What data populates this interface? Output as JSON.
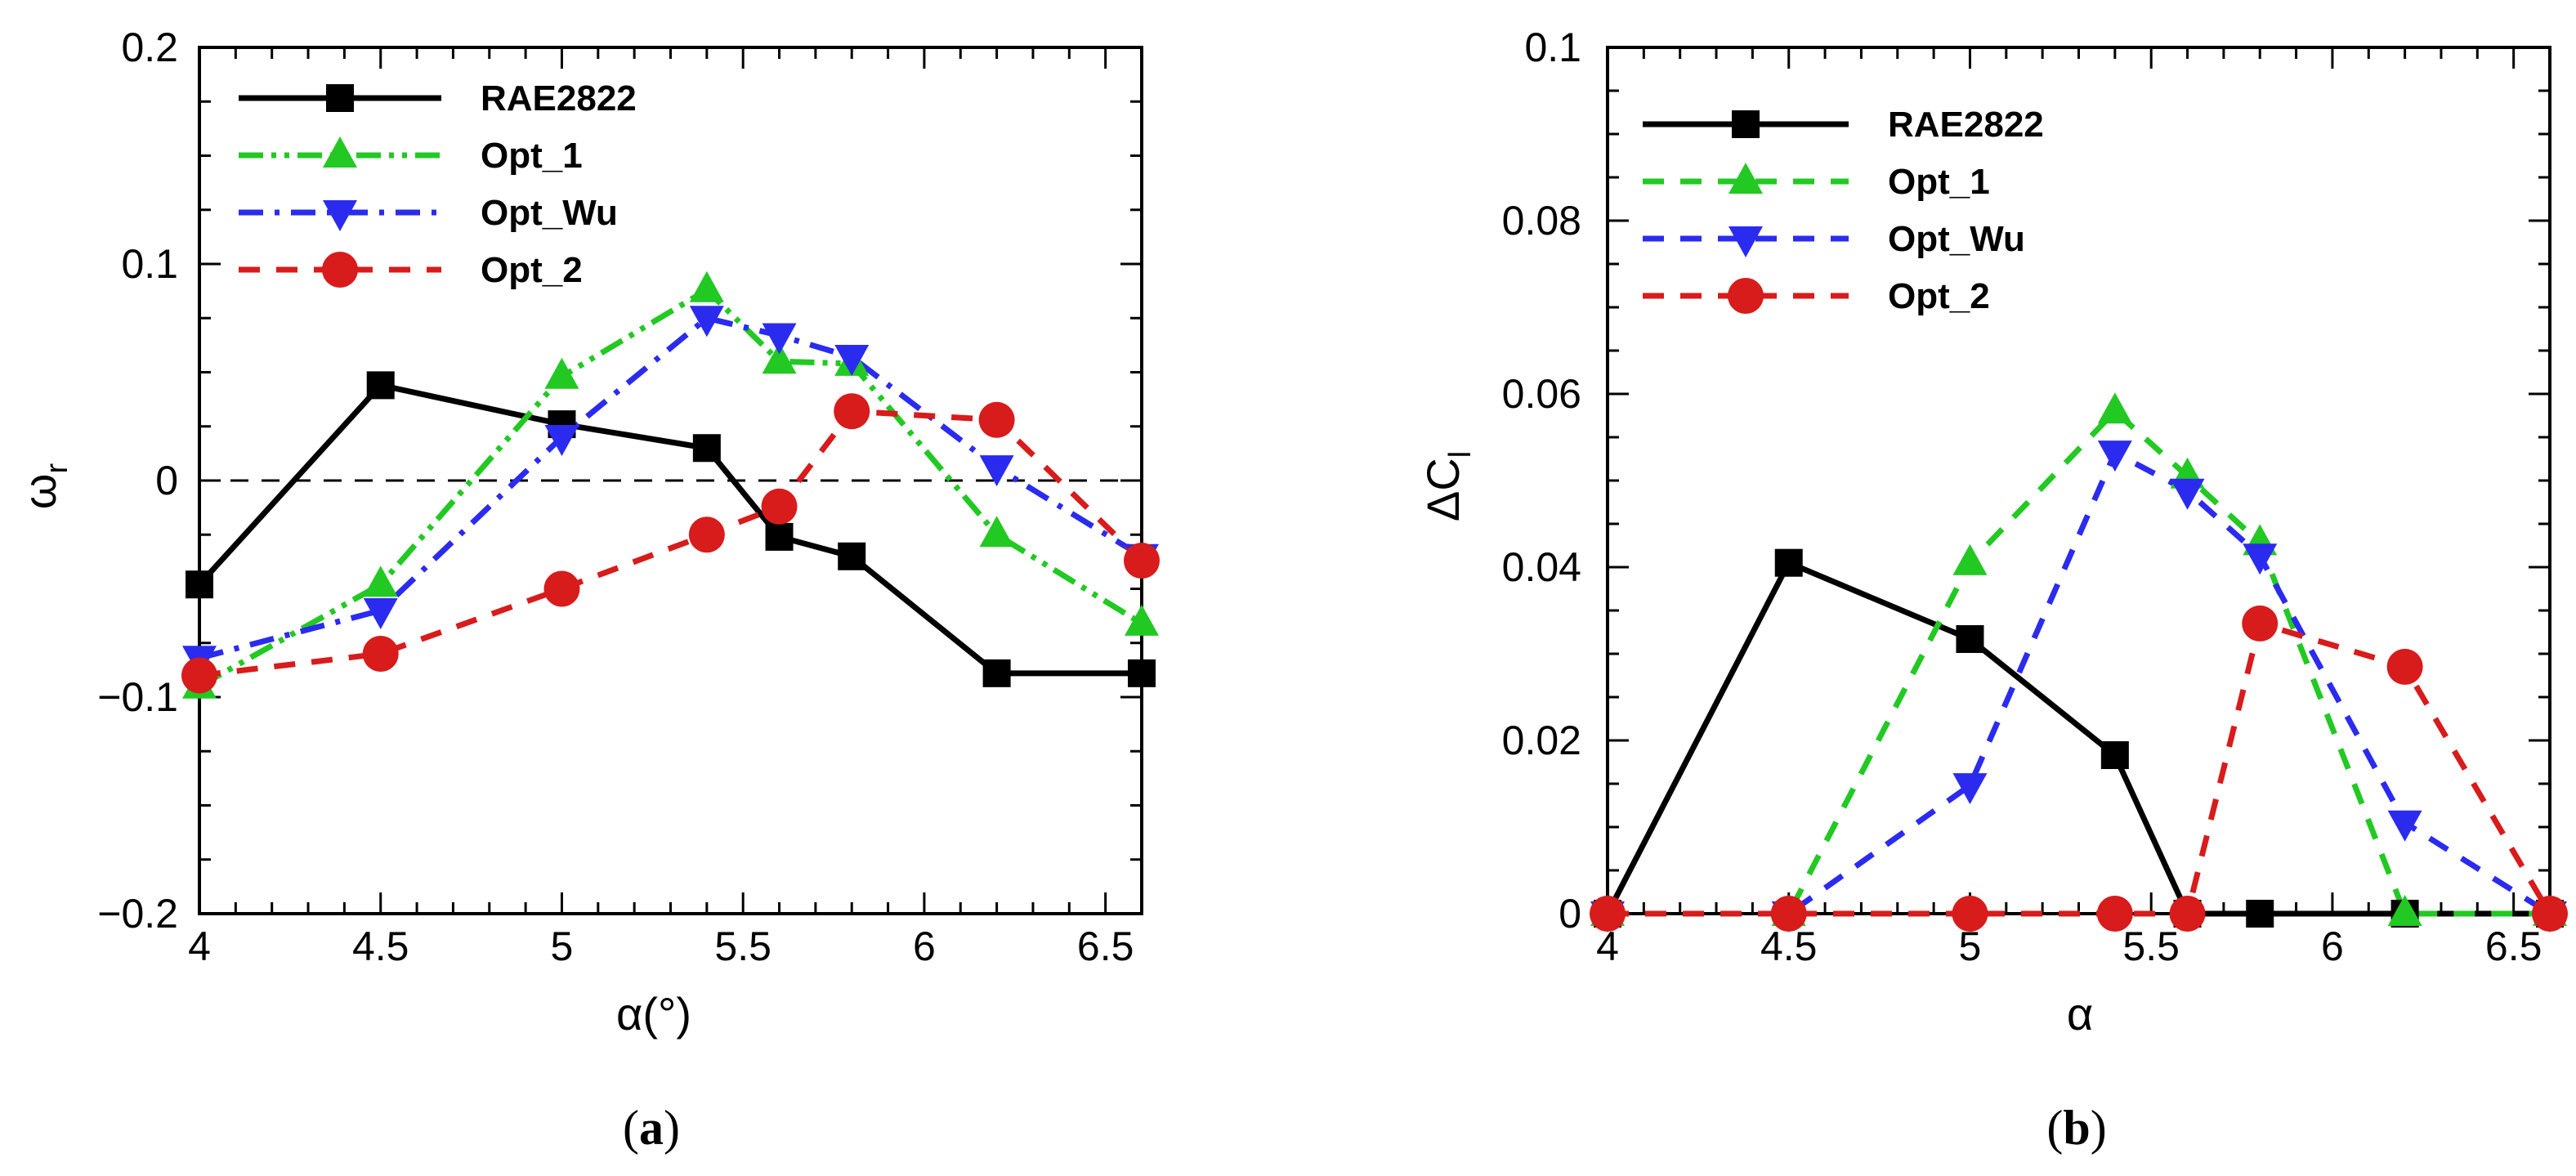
{
  "chart_data": [
    {
      "type": "line",
      "panel_label": "a",
      "xlabel": "α(°)",
      "ylabel": "ω",
      "ylabel_sub": "r",
      "xlim": [
        4,
        6.6
      ],
      "ylim": [
        -0.2,
        0.2
      ],
      "xticks": [
        4,
        4.5,
        5,
        5.5,
        6,
        6.5
      ],
      "xtick_labels": [
        "4",
        "4.5",
        "5",
        "5.5",
        "6",
        "6.5"
      ],
      "yticks": [
        -0.2,
        -0.1,
        0,
        0.1,
        0.2
      ],
      "ytick_labels": [
        "−0.2",
        "−0.1",
        "0",
        "0.1",
        "0.2"
      ],
      "reference_line": {
        "y": 0,
        "style": "dashed"
      },
      "legend_position": "top-left",
      "series": [
        {
          "name": "RAE2822",
          "color": "#000000",
          "marker": "square",
          "dash": "solid",
          "x": [
            4,
            4.5,
            5,
            5.4,
            5.6,
            5.8,
            6.2,
            6.6
          ],
          "y": [
            -0.048,
            0.044,
            0.026,
            0.015,
            -0.026,
            -0.035,
            -0.089,
            -0.089
          ]
        },
        {
          "name": "Opt_1",
          "color": "#22c922",
          "marker": "triangle-up",
          "dash": "dashdotdot",
          "x": [
            4,
            4.5,
            5,
            5.4,
            5.6,
            5.8,
            6.2,
            6.6
          ],
          "y": [
            -0.095,
            -0.048,
            0.048,
            0.088,
            0.055,
            0.054,
            -0.025,
            -0.066
          ]
        },
        {
          "name": "Opt_Wu",
          "color": "#2b2bf0",
          "marker": "triangle-down",
          "dash": "dashdot",
          "x": [
            4,
            4.5,
            5,
            5.4,
            5.6,
            5.8,
            6.2,
            6.6
          ],
          "y": [
            -0.082,
            -0.06,
            0.02,
            0.075,
            0.067,
            0.057,
            0.006,
            -0.035
          ]
        },
        {
          "name": "Opt_2",
          "color": "#d81b1b",
          "marker": "circle",
          "dash": "dashed",
          "x": [
            4,
            4.5,
            5,
            5.4,
            5.6,
            5.8,
            6.2,
            6.6
          ],
          "y": [
            -0.09,
            -0.08,
            -0.05,
            -0.025,
            -0.012,
            0.032,
            0.028,
            -0.037
          ]
        }
      ]
    },
    {
      "type": "line",
      "panel_label": "b",
      "xlabel": "α",
      "ylabel": "ΔC",
      "ylabel_sub": "l",
      "xlim": [
        4,
        6.6
      ],
      "ylim": [
        0,
        0.1
      ],
      "xticks": [
        4,
        4.5,
        5,
        5.5,
        6,
        6.5
      ],
      "xtick_labels": [
        "4",
        "4.5",
        "5",
        "5.5",
        "6",
        "6.5"
      ],
      "yticks": [
        0,
        0.02,
        0.04,
        0.06,
        0.08,
        0.1
      ],
      "ytick_labels": [
        "0",
        "0.02",
        "0.04",
        "0.06",
        "0.08",
        "0.1"
      ],
      "legend_position": "top-left",
      "series": [
        {
          "name": "RAE2822",
          "color": "#000000",
          "marker": "square",
          "dash": "solid",
          "x": [
            4,
            4.5,
            5,
            5.4,
            5.6,
            5.8,
            6.2,
            6.6
          ],
          "y": [
            0,
            0.0405,
            0.0317,
            0.0183,
            0,
            0,
            0,
            0
          ]
        },
        {
          "name": "Opt_1",
          "color": "#22c922",
          "marker": "triangle-up",
          "dash": "dashed",
          "x": [
            4,
            4.5,
            5,
            5.4,
            5.6,
            5.8,
            6.2,
            6.6
          ],
          "y": [
            0,
            0,
            0.0405,
            0.058,
            0.0505,
            0.0428,
            0,
            0
          ]
        },
        {
          "name": "Opt_Wu",
          "color": "#2b2bf0",
          "marker": "triangle-down",
          "dash": "dashed",
          "x": [
            4,
            4.5,
            5,
            5.4,
            5.6,
            5.8,
            6.2,
            6.6
          ],
          "y": [
            0,
            0,
            0.0148,
            0.0532,
            0.0488,
            0.0413,
            0.0105,
            0
          ]
        },
        {
          "name": "Opt_2",
          "color": "#d81b1b",
          "marker": "circle",
          "dash": "dashed",
          "x": [
            4,
            4.5,
            5,
            5.4,
            5.6,
            5.8,
            6.2,
            6.6
          ],
          "y": [
            0,
            0,
            0,
            0,
            0,
            0.0335,
            0.0285,
            0
          ]
        }
      ]
    }
  ]
}
